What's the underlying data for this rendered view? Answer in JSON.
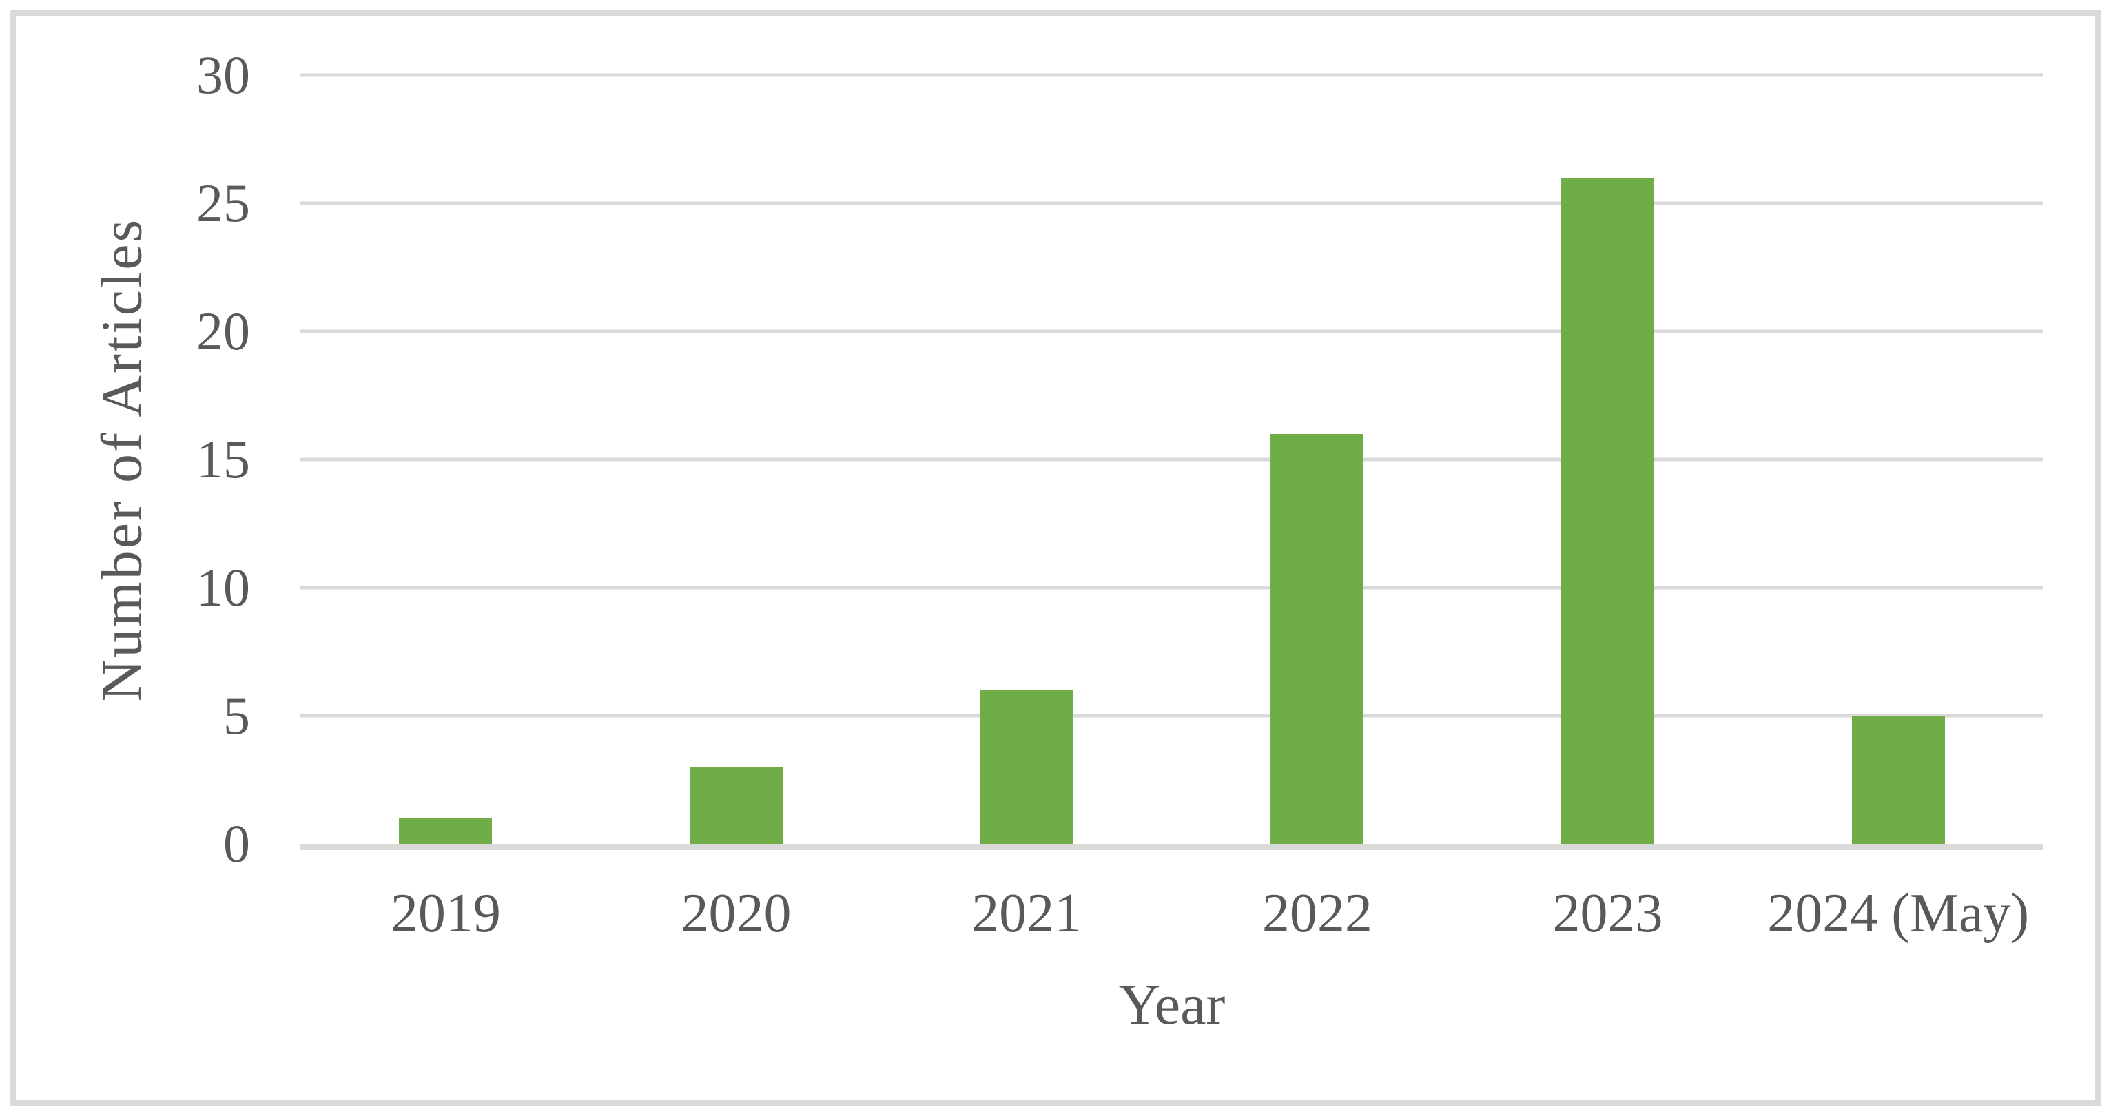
{
  "chart_data": {
    "type": "bar",
    "categories": [
      "2019",
      "2020",
      "2021",
      "2022",
      "2023",
      "2024 (May)"
    ],
    "values": [
      1,
      3,
      6,
      16,
      26,
      5
    ],
    "xlabel": "Year",
    "ylabel": "Number of Articles",
    "ylim": [
      0,
      30
    ],
    "yticks": [
      0,
      5,
      10,
      15,
      20,
      25,
      30
    ],
    "grid": "horizontal",
    "legend": false,
    "bar_color": "#70AD47",
    "gridline_color": "#D9D9D9",
    "axis_line_color": "#D9D9D9",
    "label_color": "#595959",
    "frame_color": "#D9D9D9",
    "background_color": "#FFFFFF"
  }
}
